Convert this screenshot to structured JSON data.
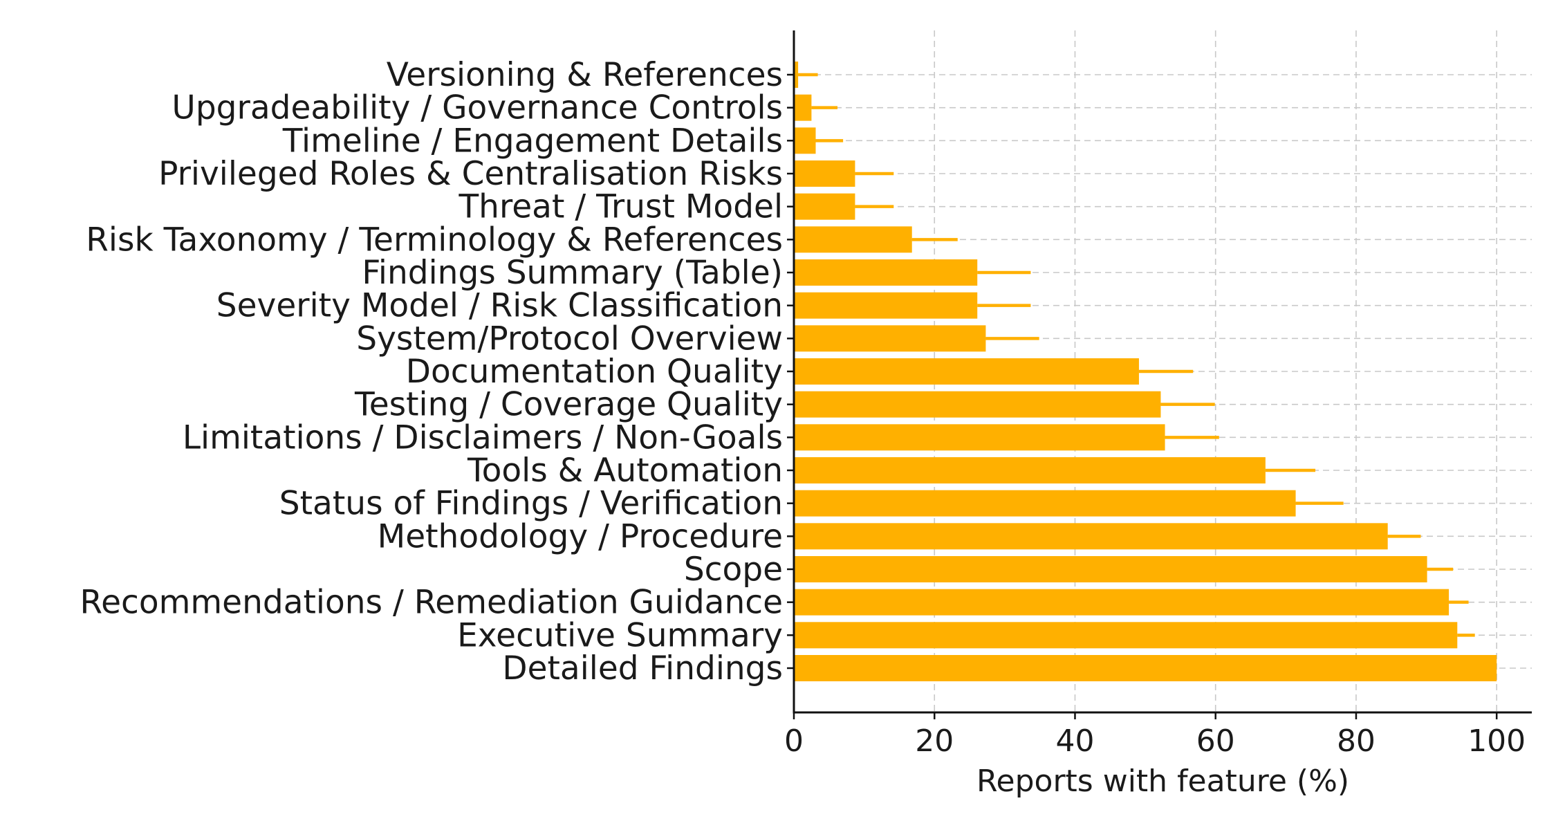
{
  "chart_data": {
    "type": "bar",
    "orientation": "horizontal",
    "title": "",
    "xlabel": "Reports with feature (%)",
    "ylabel": "",
    "xlim": [
      0,
      105
    ],
    "xticks": [
      0,
      20,
      40,
      60,
      80,
      100
    ],
    "grid": true,
    "bar_color": "#FFB000",
    "error_color": "#FFB000",
    "categories": [
      "Versioning & References",
      "Upgradeability / Governance Controls",
      "Timeline / Engagement Details",
      "Privileged Roles & Centralisation Risks",
      "Threat / Trust Model",
      "Risk Taxonomy / Terminology & References",
      "Findings Summary (Table)",
      "Severity Model / Risk Classification",
      "System/Protocol Overview",
      "Documentation Quality",
      "Testing / Coverage Quality",
      "Limitations / Disclaimers / Non-Goals",
      "Tools & Automation",
      "Status of Findings / Verification",
      "Methodology / Procedure",
      "Scope",
      "Recommendations / Remediation Guidance",
      "Executive Summary",
      "Detailed Findings"
    ],
    "values": [
      0.6,
      2.5,
      3.1,
      8.7,
      8.7,
      16.8,
      26.1,
      26.1,
      27.3,
      49.1,
      52.2,
      52.8,
      67.1,
      71.4,
      84.5,
      90.1,
      93.2,
      94.4,
      100.0
    ],
    "error_upper": [
      3.4,
      6.2,
      7.0,
      14.2,
      14.2,
      23.3,
      33.7,
      33.7,
      34.9,
      56.8,
      59.9,
      60.5,
      74.2,
      78.2,
      89.2,
      93.8,
      96.0,
      96.9,
      100.0
    ]
  }
}
